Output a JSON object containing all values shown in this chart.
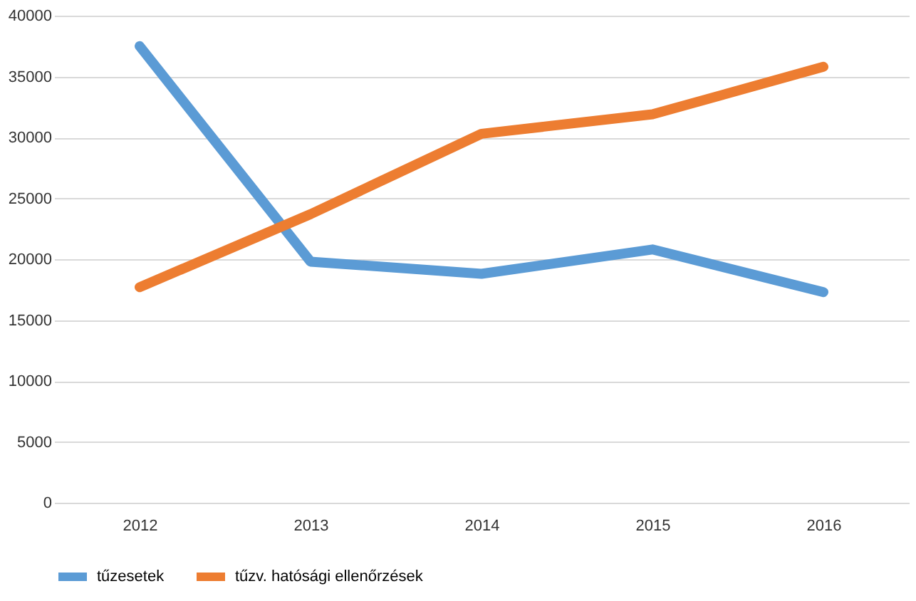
{
  "chart_data": {
    "type": "line",
    "categories": [
      "2012",
      "2013",
      "2014",
      "2015",
      "2016"
    ],
    "series": [
      {
        "name": "tűzesetek",
        "color": "#5b9bd5",
        "values": [
          37500,
          19800,
          18800,
          20800,
          17300
        ]
      },
      {
        "name": "tűzv. hatósági ellenőrzések",
        "color": "#ed7d31",
        "values": [
          17700,
          23700,
          30300,
          31900,
          35800
        ]
      }
    ],
    "ylim": [
      0,
      40000
    ],
    "yticks": [
      0,
      5000,
      10000,
      15000,
      20000,
      25000,
      30000,
      35000,
      40000
    ],
    "grid": "y",
    "legend": "bottom",
    "marker": "none",
    "line_style": "solid"
  }
}
